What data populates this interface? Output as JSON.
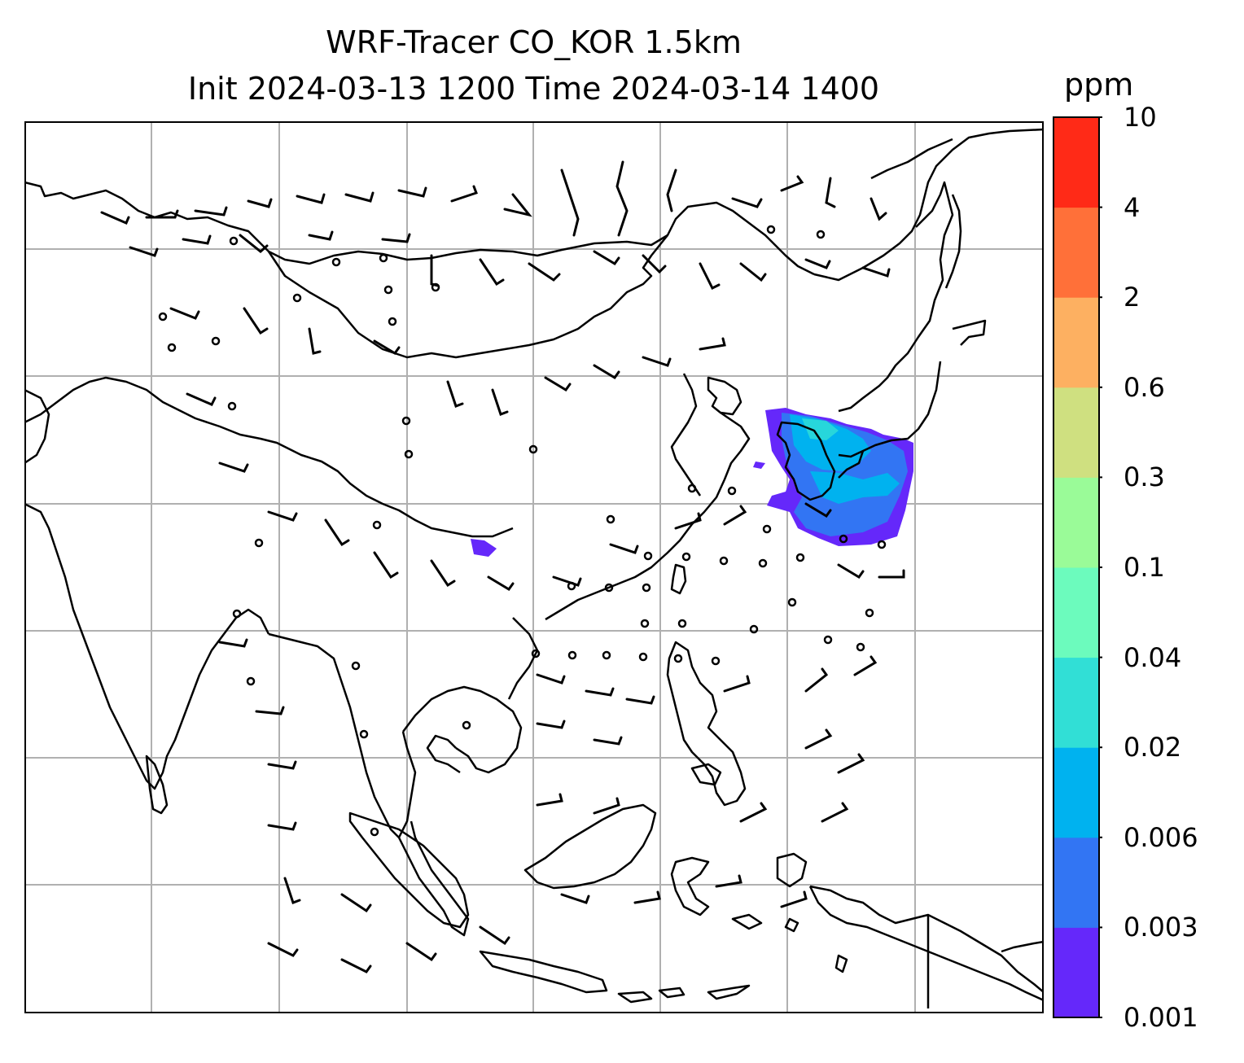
{
  "title_line1": "WRF-Tracer CO_KOR 1.5km",
  "title_line2": "Init 2024-03-13 1200 Time 2024-03-14 1400",
  "colorbar": {
    "unit": "ppm",
    "levels": [
      "0.001",
      "0.003",
      "0.006",
      "0.02",
      "0.04",
      "0.1",
      "0.3",
      "0.6",
      "2",
      "4",
      "10"
    ],
    "colors": [
      "#6528fa",
      "#3275f3",
      "#00b2ef",
      "#31dfd6",
      "#6cfbbd",
      "#9afb98",
      "#cfe080",
      "#fdb061",
      "#ff7039",
      "#ff2a17"
    ]
  },
  "map": {
    "region": "East and Southeast Asia",
    "coastline_color": "#000000",
    "gridline_color": "#b0b0b0",
    "wind_barbs": true
  }
}
